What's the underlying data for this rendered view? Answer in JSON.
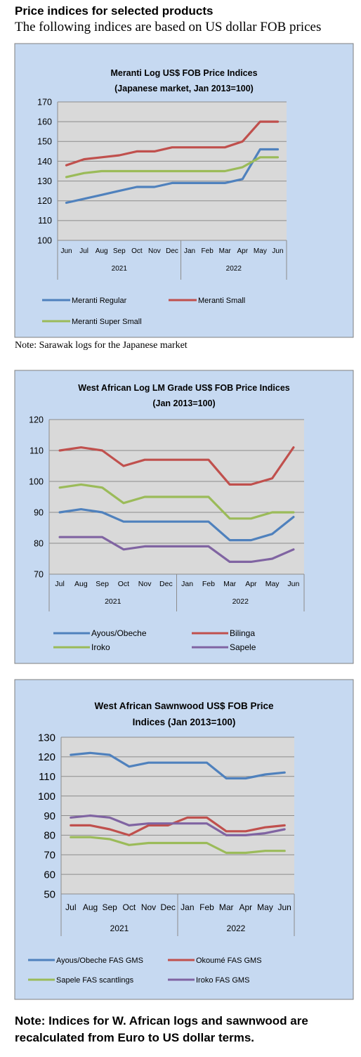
{
  "header": {
    "title": "Price indices for selected products",
    "subtitle": "The following indices are based on US dollar FOB prices"
  },
  "notes": {
    "chart1": "Note: Sarawak logs for the Japanese market",
    "bottom": "Note: Indices for W. African logs and sawnwood are recalculated from Euro to US dollar terms."
  },
  "colors": {
    "panel_fill": "#c6d9f1",
    "plot_fill": "#d9d9d9",
    "blue": "#4f81bd",
    "red": "#c0504d",
    "green": "#9bbb59",
    "purple": "#8064a2"
  },
  "chart_data": [
    {
      "type": "line",
      "title": [
        "Meranti Log US$ FOB Price Indices",
        "(Japanese market, Jan 2013=100)"
      ],
      "categories": [
        "Jun",
        "Jul",
        "Aug",
        "Sep",
        "Oct",
        "Nov",
        "Dec",
        "Jan",
        "Feb",
        "Mar",
        "Apr",
        "May",
        "Jun"
      ],
      "years": [
        {
          "label": "2021",
          "start": 0,
          "end": 6
        },
        {
          "label": "2022",
          "start": 7,
          "end": 12
        }
      ],
      "ylim": [
        100,
        170
      ],
      "yticks": [
        100,
        110,
        120,
        130,
        140,
        150,
        160,
        170
      ],
      "ytick_labels": [
        "100",
        "110",
        "120",
        "130",
        "140",
        "150",
        "160",
        "170"
      ],
      "grid": true,
      "legend": "bottom",
      "series": [
        {
          "name": "Meranti Regular",
          "color": "#4f81bd",
          "values": [
            119,
            121,
            123,
            125,
            127,
            127,
            129,
            129,
            129,
            129,
            131,
            146,
            146
          ]
        },
        {
          "name": "Meranti Small",
          "color": "#c0504d",
          "values": [
            138,
            141,
            142,
            143,
            145,
            145,
            147,
            147,
            147,
            147,
            150,
            160,
            160
          ]
        },
        {
          "name": "Meranti Super Small",
          "color": "#9bbb59",
          "values": [
            132,
            134,
            135,
            135,
            135,
            135,
            135,
            135,
            135,
            135,
            137,
            142,
            142
          ]
        }
      ]
    },
    {
      "type": "line",
      "title": [
        "West African Log LM Grade US$ FOB Price Indices",
        "(Jan 2013=100)"
      ],
      "categories": [
        "Jul",
        "Aug",
        "Sep",
        "Oct",
        "Nov",
        "Dec",
        "Jan",
        "Feb",
        "Mar",
        "Apr",
        "May",
        "Jun"
      ],
      "years": [
        {
          "label": "2021",
          "start": 0,
          "end": 5
        },
        {
          "label": "2022",
          "start": 6,
          "end": 11
        }
      ],
      "ylim": [
        70,
        120
      ],
      "yticks": [
        70,
        80,
        90,
        100,
        110,
        120
      ],
      "ytick_labels": [
        "70",
        "80",
        "90",
        "100",
        "110",
        "120"
      ],
      "grid": true,
      "legend": "bottom",
      "series": [
        {
          "name": "Ayous/Obeche",
          "color": "#4f81bd",
          "values": [
            90,
            91,
            90,
            87,
            87,
            87,
            87,
            87,
            81,
            81,
            83,
            88.5
          ]
        },
        {
          "name": "Bilinga",
          "color": "#c0504d",
          "values": [
            110,
            111,
            110,
            105,
            107,
            107,
            107,
            107,
            99,
            99,
            101,
            111
          ]
        },
        {
          "name": "Iroko",
          "color": "#9bbb59",
          "values": [
            98,
            99,
            98,
            93,
            95,
            95,
            95,
            95,
            88,
            88,
            90,
            90
          ]
        },
        {
          "name": "Sapele",
          "color": "#8064a2",
          "values": [
            82,
            82,
            82,
            78,
            79,
            79,
            79,
            79,
            74,
            74,
            75,
            78
          ]
        }
      ]
    },
    {
      "type": "line",
      "title": [
        "West African Sawnwood US$ FOB Price",
        "Indices (Jan 2013=100)"
      ],
      "categories": [
        "Jul",
        "Aug",
        "Sep",
        "Oct",
        "Nov",
        "Dec",
        "Jan",
        "Feb",
        "Mar",
        "Apr",
        "May",
        "Jun"
      ],
      "years": [
        {
          "label": "2021",
          "start": 0,
          "end": 5
        },
        {
          "label": "2022",
          "start": 6,
          "end": 11
        }
      ],
      "ylim": [
        50,
        130
      ],
      "yticks": [
        50,
        60,
        70,
        80,
        90,
        100,
        110,
        120,
        130
      ],
      "ytick_labels": [
        "50",
        "60",
        "70",
        "80",
        "90",
        "100",
        "110",
        "120",
        "130"
      ],
      "grid": true,
      "legend": "bottom",
      "series": [
        {
          "name": "Ayous/Obeche  FAS GMS",
          "color": "#4f81bd",
          "values": [
            121,
            122,
            121,
            115,
            117,
            117,
            117,
            117,
            109,
            109,
            111,
            112
          ]
        },
        {
          "name": "Okoumé  FAS GMS",
          "color": "#c0504d",
          "values": [
            85,
            85,
            83,
            80,
            85,
            85,
            89,
            89,
            82,
            82,
            84,
            85
          ]
        },
        {
          "name": "Sapele FAS scantlings",
          "color": "#9bbb59",
          "values": [
            79,
            79,
            78,
            75,
            76,
            76,
            76,
            76,
            71,
            71,
            72,
            72
          ]
        },
        {
          "name": "Iroko FAS GMS",
          "color": "#8064a2",
          "values": [
            89,
            90,
            89,
            85,
            86,
            86,
            86,
            86,
            80,
            80,
            81,
            83
          ]
        }
      ]
    }
  ]
}
